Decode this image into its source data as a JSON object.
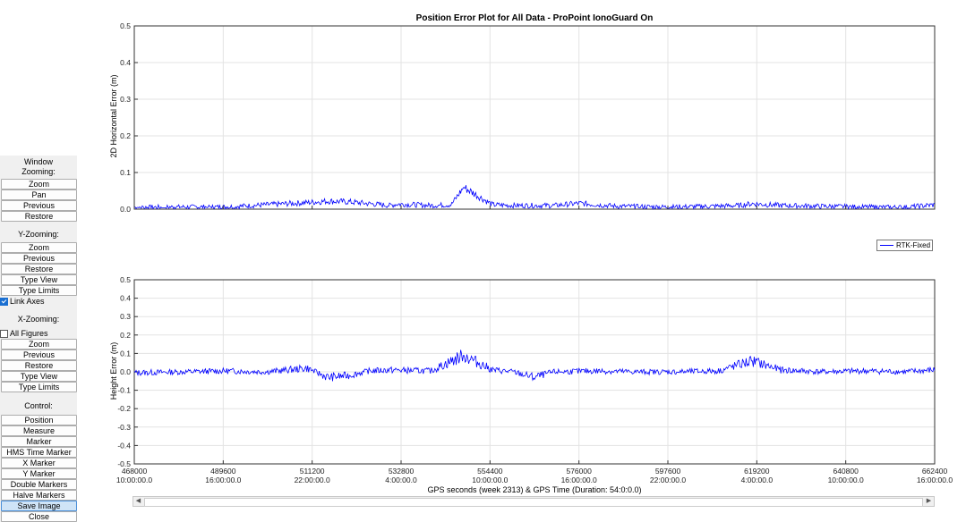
{
  "panel": {
    "window_zooming_label": "Window\nZooming:",
    "window_zooming_buttons": [
      "Zoom",
      "Pan",
      "Previous",
      "Restore"
    ],
    "y_zooming_label": "Y-Zooming:",
    "y_zooming_buttons": [
      "Zoom",
      "Previous",
      "Restore",
      "Type View",
      "Type Limits"
    ],
    "link_axes": {
      "label": "Link Axes",
      "checked": true
    },
    "x_zooming_label": "X-Zooming:",
    "all_figures": {
      "label": "All Figures",
      "checked": false
    },
    "x_zooming_buttons": [
      "Zoom",
      "Previous",
      "Restore",
      "Type View",
      "Type Limits"
    ],
    "control_label": "Control:",
    "control_buttons": [
      "Position",
      "Measure",
      "Marker",
      "HMS Time Marker",
      "X Marker",
      "Y Marker",
      "Double Markers",
      "Halve Markers",
      "Save Image",
      "Close"
    ],
    "selected_button": "Save Image"
  },
  "chart_data": [
    {
      "type": "line",
      "title": "Position Error Plot for All Data - ProPoint IonoGuard On",
      "ylabel": "2D Horizontal Error (m)",
      "xlabel": "",
      "ylim": [
        0,
        0.5
      ],
      "yticks": [
        "0.0",
        "0.1",
        "0.2",
        "0.3",
        "0.4",
        "0.5"
      ],
      "xlim": [
        468000,
        662400
      ],
      "grid": true,
      "series": [
        {
          "name": "RTK-Fixed",
          "x": [
            468000,
            480000,
            490000,
            500000,
            510000,
            515000,
            520000,
            525000,
            530000,
            532000,
            540000,
            545000,
            548000,
            555000,
            560000,
            570000,
            576000,
            585000,
            597000,
            605000,
            615000,
            618000,
            625000,
            635000,
            645000,
            655000,
            662400
          ],
          "y": [
            0.005,
            0.006,
            0.006,
            0.012,
            0.018,
            0.022,
            0.02,
            0.015,
            0.01,
            0.014,
            0.01,
            0.012,
            0.06,
            0.012,
            0.01,
            0.01,
            0.016,
            0.008,
            0.006,
            0.007,
            0.01,
            0.015,
            0.01,
            0.008,
            0.006,
            0.005,
            0.012
          ]
        }
      ]
    },
    {
      "type": "line",
      "title": "",
      "ylabel": "Height Error (m)",
      "xlabel": "GPS seconds (week 2313) & GPS Time (Duration: 54:0:0.0)",
      "ylim": [
        -0.5,
        0.5
      ],
      "yticks": [
        "-0.5",
        "-0.4",
        "-0.3",
        "-0.2",
        "-0.1",
        "0.0",
        "0.1",
        "0.2",
        "0.3",
        "0.4",
        "0.5"
      ],
      "xlim": [
        468000,
        662400
      ],
      "xticks": [
        {
          "value": 468000,
          "label": "468000",
          "time": "10:00:00.0"
        },
        {
          "value": 489600,
          "label": "489600",
          "time": "16:00:00.0"
        },
        {
          "value": 511200,
          "label": "511200",
          "time": "22:00:00.0"
        },
        {
          "value": 532800,
          "label": "532800",
          "time": "4:00:00.0"
        },
        {
          "value": 554400,
          "label": "554400",
          "time": "10:00:00.0"
        },
        {
          "value": 576000,
          "label": "576000",
          "time": "16:00:00.0"
        },
        {
          "value": 597600,
          "label": "597600",
          "time": "22:00:00.0"
        },
        {
          "value": 619200,
          "label": "619200",
          "time": "4:00:00.0"
        },
        {
          "value": 640800,
          "label": "640800",
          "time": "10:00:00.0"
        },
        {
          "value": 662400,
          "label": "662400",
          "time": "16:00:00.0"
        }
      ],
      "grid": true,
      "series": [
        {
          "name": "RTK-Fixed",
          "x": [
            468000,
            480000,
            490000,
            500000,
            505000,
            510000,
            515000,
            520000,
            525000,
            530000,
            540000,
            548000,
            555000,
            560000,
            565000,
            570000,
            580000,
            590000,
            600000,
            610000,
            618000,
            625000,
            635000,
            645000,
            655000,
            662400
          ],
          "y": [
            -0.005,
            0.0,
            0.005,
            0.0,
            0.01,
            0.02,
            -0.03,
            -0.02,
            0.005,
            0.01,
            0.005,
            0.09,
            0.01,
            0.0,
            -0.03,
            0.0,
            0.005,
            0.0,
            0.0,
            0.005,
            0.06,
            0.01,
            0.0,
            0.005,
            0.0,
            0.01
          ]
        }
      ]
    }
  ],
  "legend": {
    "label": "RTK-Fixed",
    "placement": "right",
    "color": "#0000ff"
  },
  "colors": {
    "series": "#0000ff",
    "grid": "#e3e3e3",
    "panel_bg": "#f0f0f0"
  }
}
